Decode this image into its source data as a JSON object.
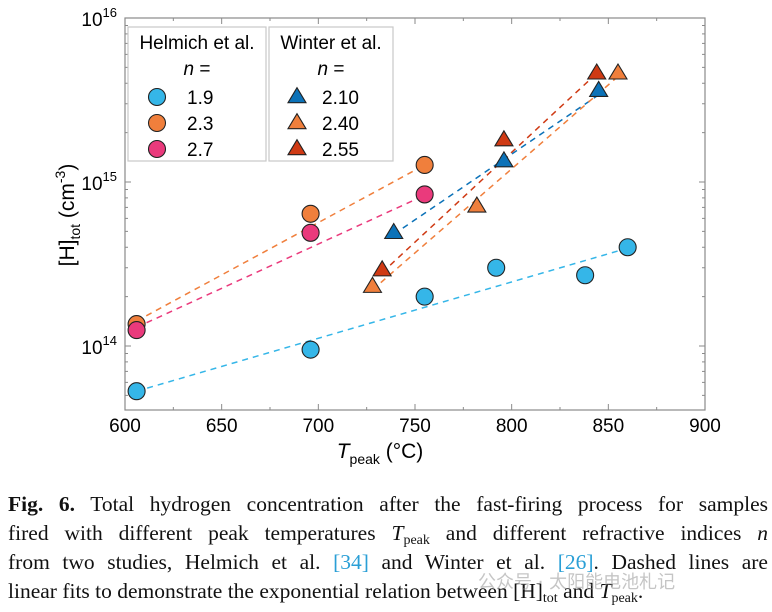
{
  "chart_data": {
    "type": "scatter",
    "title": "",
    "xlabel": "T_peak (°C)",
    "xlabel_main": "T",
    "xlabel_sub": "peak",
    "xlabel_unit": " (°C)",
    "ylabel_main": "[H]",
    "ylabel_sub": "tot",
    "ylabel_unit": " (cm",
    "ylabel_exp": "-3",
    "ylabel_close": ")",
    "xlim": [
      600,
      900
    ],
    "ylim": [
      41000000000000.0,
      1e+16
    ],
    "yscale": "log",
    "xticks": [
      600,
      650,
      700,
      750,
      800,
      850,
      900
    ],
    "xtick_labels": [
      "600",
      "650",
      "700",
      "750",
      "800",
      "850",
      "900"
    ],
    "yticks": [
      100000000000000.0,
      1000000000000000.0,
      1e+16
    ],
    "ytick_labels": [
      {
        "base": "10",
        "exp": "14"
      },
      {
        "base": "10",
        "exp": "15"
      },
      {
        "base": "10",
        "exp": "16"
      }
    ],
    "grid": false,
    "legend_placement": "top-left",
    "legend": {
      "groups": [
        {
          "title": "Helmich et al.",
          "subtitle": "n =",
          "entries": [
            "1.9",
            "2.3",
            "2.7"
          ],
          "marker": "circle"
        },
        {
          "title": "Winter et al.",
          "subtitle": "n =",
          "entries": [
            "2.10",
            "2.40",
            "2.55"
          ],
          "marker": "triangle"
        }
      ]
    },
    "series": [
      {
        "name": "1.9",
        "study": "Helmich et al.",
        "marker": "circle",
        "color": "#35b6e8",
        "x": [
          606,
          696,
          755,
          792,
          838,
          860
        ],
        "y": [
          53000000000000.0,
          95000000000000.0,
          200000000000000.0,
          300000000000000.0,
          270000000000000.0,
          400000000000000.0
        ],
        "fit": {
          "x": [
            606,
            860
          ],
          "y": [
            53000000000000.0,
            395000000000000.0
          ]
        }
      },
      {
        "name": "2.3",
        "study": "Helmich et al.",
        "marker": "circle",
        "color": "#f07f3c",
        "x": [
          606,
          696,
          755
        ],
        "y": [
          136000000000000.0,
          640000000000000.0,
          1270000000000000.0
        ],
        "fit": {
          "x": [
            606,
            755
          ],
          "y": [
            142000000000000.0,
            1270000000000000.0
          ]
        }
      },
      {
        "name": "2.7",
        "study": "Helmich et al.",
        "marker": "circle",
        "color": "#ea3a7c",
        "x": [
          606,
          696,
          755
        ],
        "y": [
          125000000000000.0,
          490000000000000.0,
          840000000000000.0
        ],
        "fit": {
          "x": [
            606,
            755
          ],
          "y": [
            130000000000000.0,
            830000000000000.0
          ]
        }
      },
      {
        "name": "2.10",
        "study": "Winter et al.",
        "marker": "triangle",
        "color": "#0c72b8",
        "x": [
          739,
          796,
          845
        ],
        "y": [
          490000000000000.0,
          1340000000000000.0,
          3600000000000000.0
        ],
        "fit": {
          "x": [
            739,
            845
          ],
          "y": [
            480000000000000.0,
            3400000000000000.0
          ]
        }
      },
      {
        "name": "2.40",
        "study": "Winter et al.",
        "marker": "triangle",
        "color": "#f07f3c",
        "x": [
          728,
          782,
          855
        ],
        "y": [
          230000000000000.0,
          710000000000000.0,
          4600000000000000.0
        ],
        "fit": {
          "x": [
            728,
            855
          ],
          "y": [
            220000000000000.0,
            4400000000000000.0
          ]
        }
      },
      {
        "name": "2.55",
        "study": "Winter et al.",
        "marker": "triangle",
        "color": "#cf3a14",
        "x": [
          733,
          796,
          844
        ],
        "y": [
          290000000000000.0,
          1800000000000000.0,
          4600000000000000.0
        ],
        "fit": {
          "x": [
            733,
            844
          ],
          "y": [
            280000000000000.0,
            4600000000000000.0
          ]
        }
      }
    ]
  },
  "caption": {
    "label": "Fig. 6.",
    "line1": "Total hydrogen concentration after the fast-firing process for samples",
    "line2_a": "fired with different peak temperatures ",
    "line2_T": "T",
    "line2_sub": "peak",
    "line2_b": " and different refractive indices ",
    "line2_n": "n",
    "line3_a": "from two studies, Helmich et al. ",
    "ref1": "[34]",
    "line3_b": " and Winter et al. ",
    "ref2": "[26]",
    "line3_c": ". Dashed lines are",
    "line4_a": "linear fits to demonstrate the exponential relation between [H]",
    "line4_sub1": "tot",
    "line4_b": " and ",
    "line4_T": "T",
    "line4_sub2": "peak",
    "line4_end": "."
  },
  "watermark": "公众号 · 太阳能电池札记"
}
